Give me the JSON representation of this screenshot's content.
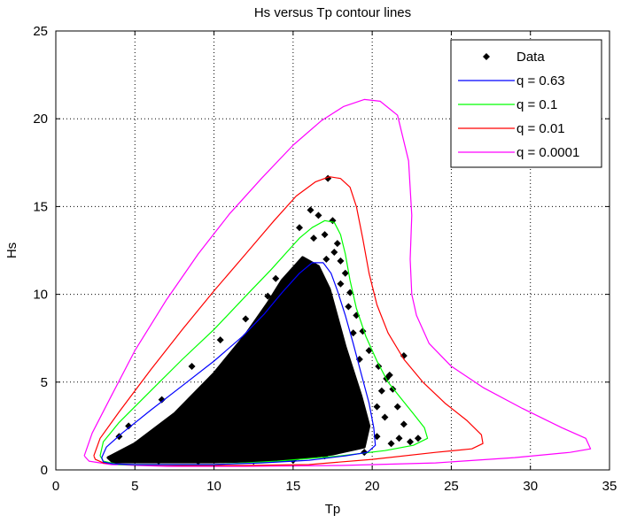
{
  "chart_data": {
    "type": "scatter",
    "title": "Hs versus Tp contour lines",
    "xlabel": "Tp",
    "ylabel": "Hs",
    "xlim": [
      0,
      35
    ],
    "ylim": [
      0,
      25
    ],
    "xticks": [
      "0",
      "5",
      "10",
      "15",
      "20",
      "25",
      "30",
      "35"
    ],
    "yticks": [
      "0",
      "5",
      "10",
      "15",
      "20",
      "25"
    ],
    "grid": true,
    "legend_position": "top-right",
    "scatter": {
      "name": "Data",
      "color": "#000000",
      "marker": "diamond",
      "core_outline": [
        [
          3.3,
          0.7
        ],
        [
          5,
          1.5
        ],
        [
          7.5,
          3.2
        ],
        [
          10,
          5.5
        ],
        [
          12,
          7.7
        ],
        [
          13.4,
          9.5
        ],
        [
          14.3,
          10.8
        ],
        [
          15.6,
          12.1
        ],
        [
          16.6,
          11.6
        ],
        [
          17.3,
          10.3
        ],
        [
          18.3,
          7.0
        ],
        [
          19.3,
          4.2
        ],
        [
          19.8,
          2.5
        ],
        [
          19.5,
          1.3
        ],
        [
          17.5,
          0.9
        ],
        [
          14.5,
          0.55
        ],
        [
          10,
          0.45
        ],
        [
          6,
          0.45
        ],
        [
          3.6,
          0.45
        ]
      ],
      "scattered_points": [
        [
          17.2,
          16.6
        ],
        [
          16.6,
          14.5
        ],
        [
          16.1,
          14.8
        ],
        [
          17.5,
          14.2
        ],
        [
          15.4,
          13.8
        ],
        [
          17.0,
          13.4
        ],
        [
          16.3,
          13.2
        ],
        [
          17.8,
          12.9
        ],
        [
          17.6,
          12.4
        ],
        [
          18.0,
          11.9
        ],
        [
          17.1,
          12.0
        ],
        [
          18.3,
          11.2
        ],
        [
          18.0,
          10.6
        ],
        [
          18.6,
          10.1
        ],
        [
          18.5,
          9.3
        ],
        [
          19.0,
          8.8
        ],
        [
          18.8,
          7.8
        ],
        [
          19.4,
          7.9
        ],
        [
          19.8,
          6.8
        ],
        [
          20.4,
          5.9
        ],
        [
          19.2,
          6.3
        ],
        [
          20.9,
          5.2
        ],
        [
          20.6,
          4.5
        ],
        [
          21.3,
          4.6
        ],
        [
          21.6,
          3.6
        ],
        [
          20.8,
          3.0
        ],
        [
          22.0,
          2.6
        ],
        [
          21.7,
          1.8
        ],
        [
          22.4,
          1.6
        ],
        [
          21.2,
          1.5
        ],
        [
          20.3,
          1.9
        ],
        [
          22.0,
          6.5
        ],
        [
          21.1,
          5.4
        ],
        [
          22.9,
          1.8
        ],
        [
          20.3,
          3.6
        ],
        [
          4.6,
          2.5
        ],
        [
          4.0,
          1.9
        ],
        [
          6.7,
          4.0
        ],
        [
          8.6,
          5.9
        ],
        [
          10.4,
          7.4
        ],
        [
          12.0,
          8.6
        ],
        [
          13.4,
          9.9
        ],
        [
          13.9,
          10.9
        ],
        [
          19.5,
          1.0
        ],
        [
          17.0,
          0.8
        ],
        [
          15.0,
          0.55
        ],
        [
          12.5,
          0.5
        ],
        [
          9.0,
          0.48
        ],
        [
          6.5,
          0.5
        ]
      ]
    },
    "series": [
      {
        "name": "q = 0.63",
        "color": "#0000ff",
        "x": [
          2.9,
          3.2,
          4.2,
          6,
          8,
          10,
          11.8,
          13.2,
          14.3,
          15.4,
          16.2,
          16.9,
          17.4,
          17.8,
          18.3,
          18.8,
          19.3,
          19.8,
          20.1,
          20.2,
          19.7,
          18.3,
          16,
          13,
          10,
          7,
          5,
          3.6,
          3.0,
          2.9
        ],
        "y": [
          0.7,
          1.3,
          2.1,
          3.4,
          4.8,
          6.2,
          7.6,
          8.9,
          10.1,
          11.2,
          11.8,
          11.8,
          11.2,
          10.2,
          8.8,
          7.2,
          5.5,
          3.8,
          2.4,
          1.4,
          1.0,
          0.8,
          0.55,
          0.4,
          0.3,
          0.3,
          0.3,
          0.35,
          0.45,
          0.7
        ]
      },
      {
        "name": "q = 0.1",
        "color": "#00ff00",
        "x": [
          2.8,
          3.0,
          4,
          6,
          8,
          10,
          12,
          13.6,
          14.6,
          15.4,
          16.2,
          17.0,
          17.6,
          18.0,
          18.3,
          18.6,
          19.0,
          19.6,
          20.3,
          21.0,
          21.8,
          22.6,
          23.3,
          23.5,
          22.6,
          20.8,
          18,
          14,
          10,
          6,
          4,
          3.0,
          2.8
        ],
        "y": [
          0.8,
          1.6,
          2.7,
          4.5,
          6.3,
          8.0,
          9.9,
          11.4,
          12.4,
          13.2,
          13.8,
          14.2,
          14.1,
          13.4,
          12.3,
          10.8,
          9.2,
          7.6,
          6.2,
          5.0,
          4.1,
          3.2,
          2.4,
          1.8,
          1.4,
          1.1,
          0.8,
          0.5,
          0.3,
          0.3,
          0.3,
          0.5,
          0.8
        ]
      },
      {
        "name": "q = 0.01",
        "color": "#ff0000",
        "x": [
          2.4,
          2.8,
          4,
          6,
          8,
          10,
          12,
          13.8,
          15.2,
          16.4,
          17.3,
          18.0,
          18.6,
          19.0,
          19.4,
          19.8,
          20.3,
          21.0,
          22.0,
          23.2,
          24.6,
          26.0,
          26.9,
          27.0,
          26.3,
          24,
          20,
          16,
          12,
          8,
          4.5,
          3.0,
          2.5,
          2.4
        ],
        "y": [
          0.8,
          1.8,
          3.3,
          5.7,
          8.0,
          10.2,
          12.3,
          14.2,
          15.6,
          16.4,
          16.7,
          16.6,
          16.1,
          15.0,
          13.2,
          11.2,
          9.4,
          7.8,
          6.3,
          5.0,
          3.8,
          2.8,
          2.0,
          1.5,
          1.2,
          1.0,
          0.6,
          0.3,
          0.25,
          0.25,
          0.3,
          0.4,
          0.6,
          0.8
        ]
      },
      {
        "name": "q = 0.0001",
        "color": "#ff00ff",
        "x": [
          1.8,
          2.3,
          3.5,
          5,
          7,
          9,
          11,
          13,
          15,
          16.8,
          18.2,
          19.5,
          20.5,
          21.6,
          22.3,
          22.5,
          22.4,
          22.5,
          22.8,
          23.6,
          25.0,
          27.0,
          29.5,
          32.0,
          33.5,
          33.8,
          32.5,
          29,
          24,
          18,
          12,
          7,
          3.5,
          2.1,
          1.8
        ],
        "y": [
          0.8,
          2.1,
          4.2,
          6.8,
          9.7,
          12.3,
          14.6,
          16.6,
          18.5,
          19.9,
          20.7,
          21.1,
          21.0,
          20.2,
          17.6,
          14.5,
          12.0,
          10.0,
          8.8,
          7.2,
          5.9,
          4.7,
          3.5,
          2.4,
          1.8,
          1.2,
          1.0,
          0.7,
          0.4,
          0.25,
          0.2,
          0.2,
          0.3,
          0.5,
          0.8
        ]
      }
    ]
  }
}
